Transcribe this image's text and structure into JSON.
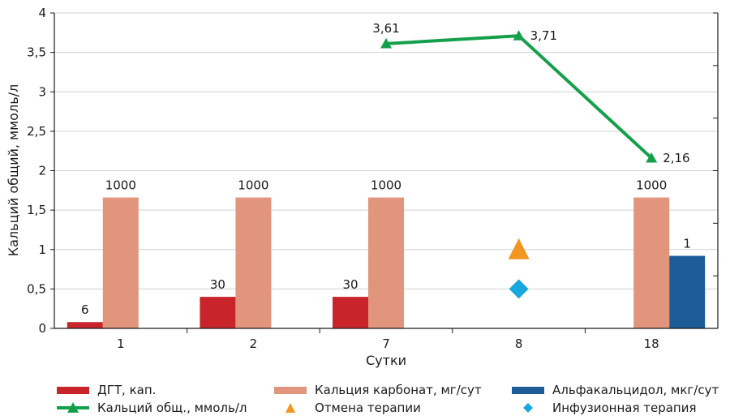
{
  "chart_data": {
    "type": "bar",
    "categories": [
      "1",
      "2",
      "7",
      "8",
      "18"
    ],
    "xlabel": "Сутки",
    "ylabel": "Кальций общий, ммоль/л",
    "ylim": [
      0,
      4
    ],
    "yticks": [
      "0",
      "0,5",
      "1",
      "1,5",
      "2",
      "2,5",
      "3",
      "3,5",
      "4"
    ],
    "grid": true,
    "legend_position": "bottom",
    "series": [
      {
        "name": "ДГТ, кап.",
        "kind": "bar",
        "color": "#c9242b",
        "values": [
          6,
          30,
          30,
          null,
          null
        ],
        "labels": [
          "6",
          "30",
          "30",
          "",
          ""
        ]
      },
      {
        "name": "Кальция карбонат, мг/сут",
        "kind": "bar",
        "color": "#e0957c",
        "values": [
          1000,
          1000,
          1000,
          null,
          1000
        ],
        "labels": [
          "1000",
          "1000",
          "1000",
          "",
          "1000"
        ]
      },
      {
        "name": "Альфакальцидол, мкг/сут",
        "kind": "bar",
        "color": "#1e5c99",
        "values": [
          null,
          null,
          null,
          null,
          1
        ],
        "labels": [
          "",
          "",
          "",
          "",
          "1"
        ]
      },
      {
        "name": "Кальций общ., ммоль/л",
        "kind": "line",
        "color": "#14a04a",
        "values": [
          null,
          null,
          3.61,
          3.71,
          2.16
        ],
        "labels": [
          "",
          "",
          "3,61",
          "3,71",
          "2,16"
        ]
      },
      {
        "name": "Отмена терапии",
        "kind": "marker",
        "marker": "triangle",
        "color": "#f39521",
        "values": [
          null,
          null,
          null,
          1.0,
          null
        ]
      },
      {
        "name": "Инфузионная терапия",
        "kind": "marker",
        "marker": "diamond",
        "color": "#19a7e0",
        "values": [
          null,
          null,
          null,
          0.5,
          null
        ]
      }
    ],
    "display_heights_left_axis": {
      "ДГТ, кап.": [
        0.08,
        0.4,
        0.4,
        null,
        null
      ],
      "Кальция карбонат, мг/сут": [
        1.66,
        1.66,
        1.66,
        null,
        1.66
      ],
      "Альфакальцидол, мкг/сут": [
        null,
        null,
        null,
        null,
        0.92
      ]
    }
  }
}
